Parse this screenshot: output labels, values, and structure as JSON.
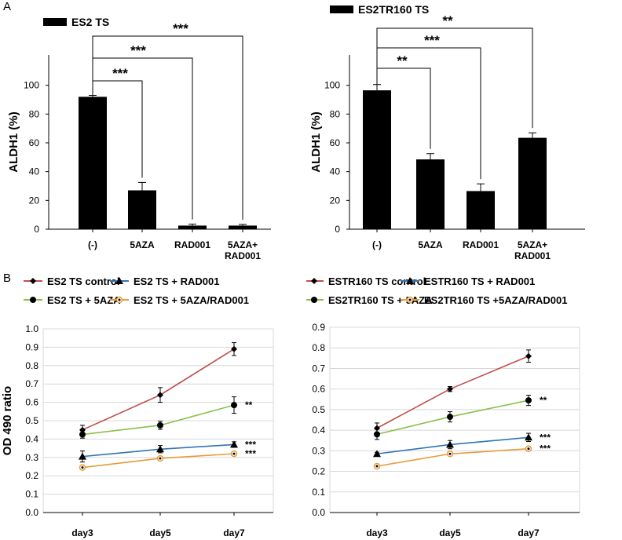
{
  "panels": {
    "a": "A",
    "b": "B"
  },
  "chart_data": [
    {
      "type": "bar",
      "legend": "ES2 TS",
      "ylabel": "ALDH1 (%)",
      "categories": [
        "(-)",
        "5AZA",
        "RAD001",
        "5AZA+|RAD001"
      ],
      "values": [
        92,
        27,
        2.5,
        2.5
      ],
      "errors": [
        1,
        5.5,
        1,
        0.8
      ],
      "ylim": [
        0,
        120
      ],
      "yticks": [
        "0",
        "20",
        "40",
        "60",
        "80",
        "100"
      ],
      "significance": [
        {
          "to": 1,
          "label": "***"
        },
        {
          "to": 2,
          "label": "***"
        },
        {
          "to": 3,
          "label": "***"
        }
      ],
      "bar_color": "#000000"
    },
    {
      "type": "bar",
      "legend": "ES2TR160 TS",
      "ylabel": "ALDH1 (%)",
      "categories": [
        "(-)",
        "5AZA",
        "RAD001",
        "5AZA+|RAD001"
      ],
      "values": [
        96.5,
        48.5,
        26.5,
        63.5
      ],
      "errors": [
        4,
        4,
        5,
        3.5
      ],
      "ylim": [
        0,
        120
      ],
      "yticks": [
        "0",
        "20",
        "40",
        "60",
        "80",
        "100"
      ],
      "significance": [
        {
          "to": 1,
          "label": "**"
        },
        {
          "to": 2,
          "label": "***"
        },
        {
          "to": 3,
          "label": "**"
        }
      ],
      "bar_color": "#000000"
    },
    {
      "type": "line",
      "ylabel": "OD 490 ratio",
      "categories": [
        "day3",
        "day5",
        "day7"
      ],
      "ylim": [
        0,
        1.0
      ],
      "yticks": [
        "0.0",
        "0.1",
        "0.2",
        "0.3",
        "0.4",
        "0.5",
        "0.6",
        "0.7",
        "0.8",
        "0.9",
        "1.0"
      ],
      "series": [
        {
          "name": "ES2 TS control",
          "values": [
            0.45,
            0.64,
            0.89
          ],
          "errors": [
            0.025,
            0.04,
            0.035
          ],
          "color": "#c0504d",
          "marker": "diamond",
          "sig": ""
        },
        {
          "name": "ES2 TS + RAD001",
          "values": [
            0.305,
            0.345,
            0.37
          ],
          "errors": [
            0.03,
            0.02,
            0.015
          ],
          "color": "#2e75b6",
          "marker": "triangle",
          "sig": "***"
        },
        {
          "name": "ES2 TS + 5AZA",
          "values": [
            0.425,
            0.475,
            0.585
          ],
          "errors": [
            0.02,
            0.022,
            0.045
          ],
          "color": "#8cbf4a",
          "marker": "circle",
          "sig": "**"
        },
        {
          "name": "ES2 TS + 5AZA/RAD001",
          "values": [
            0.245,
            0.295,
            0.32
          ],
          "errors": [
            0.008,
            0.01,
            0.008
          ],
          "color": "#e69c38",
          "marker": "open-circle",
          "sig": "***"
        }
      ]
    },
    {
      "type": "line",
      "ylabel": "OD 490 ratio",
      "categories": [
        "day3",
        "day5",
        "day7"
      ],
      "ylim": [
        0,
        0.9
      ],
      "yticks": [
        "0.0",
        "0.1",
        "0.2",
        "0.3",
        "0.4",
        "0.5",
        "0.6",
        "0.7",
        "0.8",
        "0.9"
      ],
      "series": [
        {
          "name": "ESTR160 TS control",
          "values": [
            0.41,
            0.6,
            0.76
          ],
          "errors": [
            0.025,
            0.012,
            0.03
          ],
          "color": "#c0504d",
          "marker": "diamond",
          "sig": ""
        },
        {
          "name": "ESTR160 TS + RAD001",
          "values": [
            0.285,
            0.33,
            0.365
          ],
          "errors": [
            0.008,
            0.02,
            0.02
          ],
          "color": "#2e75b6",
          "marker": "triangle",
          "sig": "***"
        },
        {
          "name": "ES2TR160 TS  + 5AZA",
          "values": [
            0.38,
            0.465,
            0.545
          ],
          "errors": [
            0.025,
            0.025,
            0.025
          ],
          "color": "#8cbf4a",
          "marker": "circle",
          "sig": "**"
        },
        {
          "name": "ES2TR160 TS +5AZA/RAD001",
          "values": [
            0.225,
            0.285,
            0.31
          ],
          "errors": [
            0.01,
            0.01,
            0.01
          ],
          "color": "#e69c38",
          "marker": "open-circle",
          "sig": "***"
        }
      ]
    }
  ]
}
